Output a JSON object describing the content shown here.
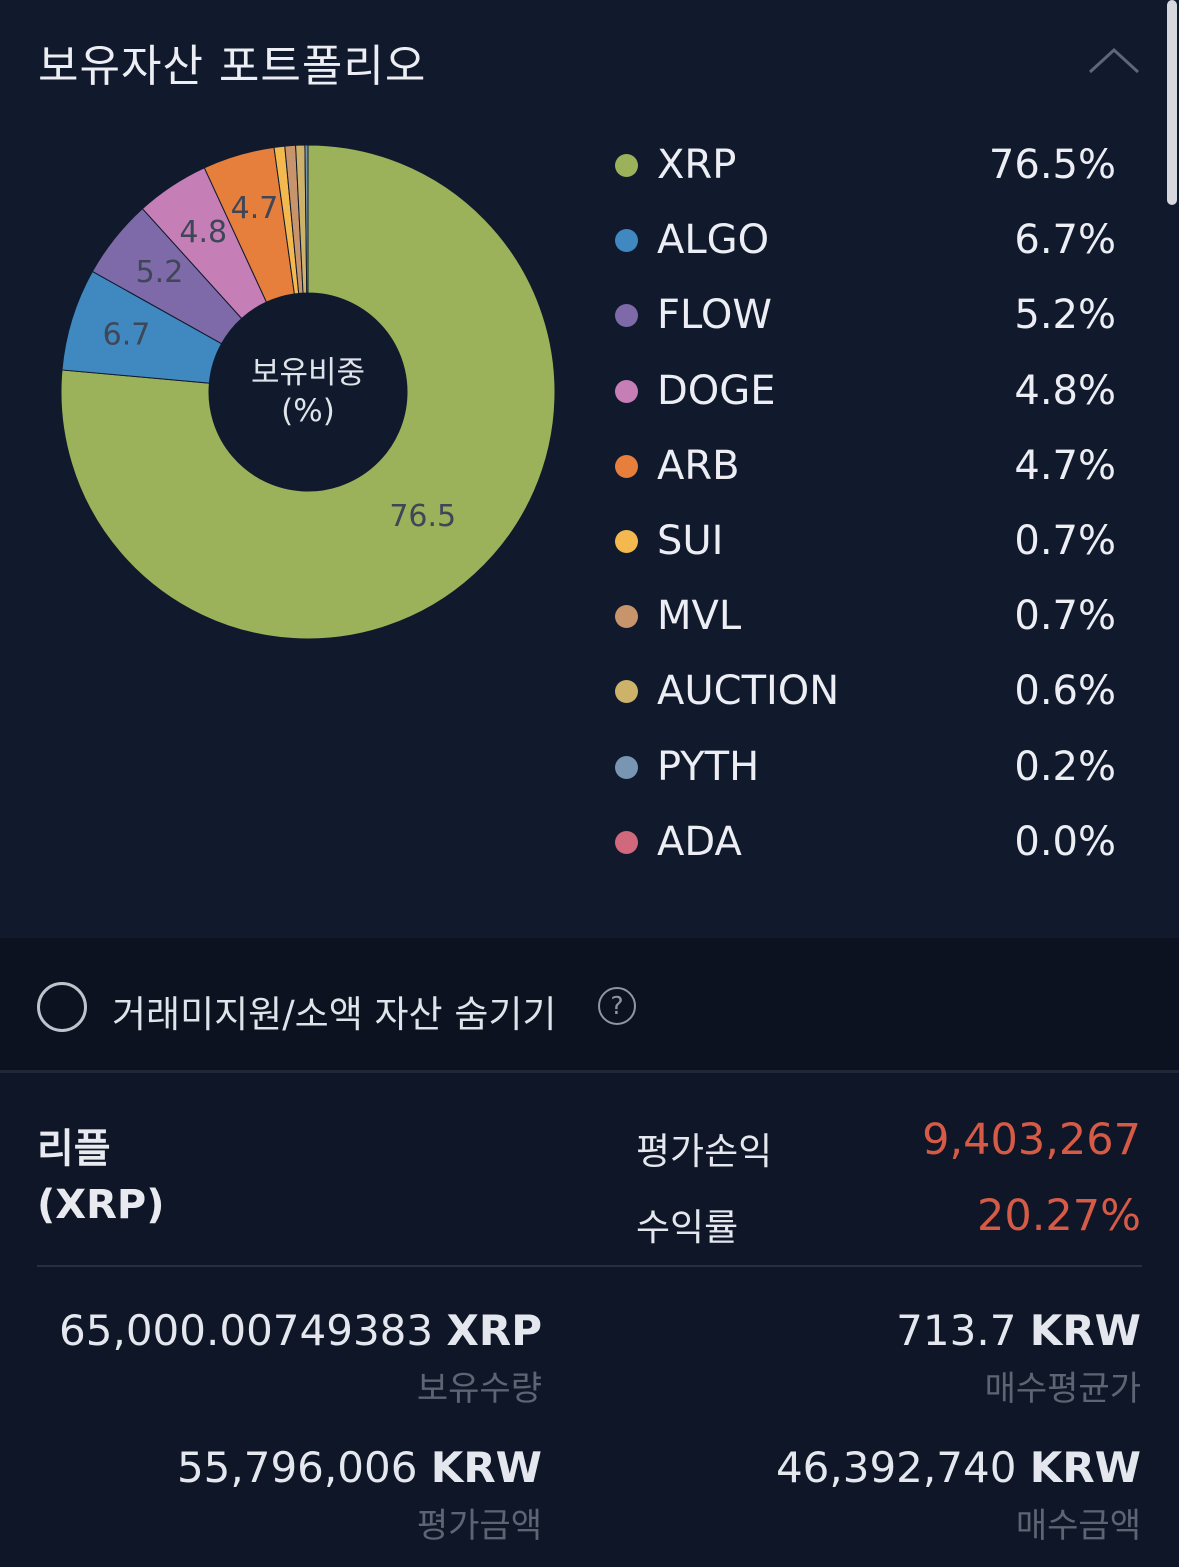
{
  "header": {
    "title": "보유자산 포트폴리오"
  },
  "chart_data": {
    "type": "pie",
    "center_label": [
      "보유비중",
      "(%)"
    ],
    "slices": [
      {
        "name": "XRP",
        "value": 76.5,
        "label": "76.5",
        "legend": "76.5%",
        "color": "#9bb15a"
      },
      {
        "name": "ALGO",
        "value": 6.7,
        "label": "6.7",
        "legend": "6.7%",
        "color": "#3f88c0"
      },
      {
        "name": "FLOW",
        "value": 5.2,
        "label": "5.2",
        "legend": "5.2%",
        "color": "#7e6aa8"
      },
      {
        "name": "DOGE",
        "value": 4.8,
        "label": "4.8",
        "legend": "4.8%",
        "color": "#c57fb6"
      },
      {
        "name": "ARB",
        "value": 4.7,
        "label": "4.7",
        "legend": "4.7%",
        "color": "#e57f3b"
      },
      {
        "name": "SUI",
        "value": 0.7,
        "label": "",
        "legend": "0.7%",
        "color": "#f3b84e"
      },
      {
        "name": "MVL",
        "value": 0.7,
        "label": "",
        "legend": "0.7%",
        "color": "#c8946c"
      },
      {
        "name": "AUCTION",
        "value": 0.6,
        "label": "",
        "legend": "0.6%",
        "color": "#cdb36a"
      },
      {
        "name": "PYTH",
        "value": 0.2,
        "label": "",
        "legend": "0.2%",
        "color": "#7896b1"
      },
      {
        "name": "ADA",
        "value": 0.0,
        "label": "",
        "legend": "0.0%",
        "color": "#d2687c"
      }
    ]
  },
  "filter": {
    "label": "거래미지원/소액 자산 숨기기",
    "help": "?"
  },
  "asset": {
    "name": "리플",
    "ticker": "(XRP)",
    "pl_label": "평가손익",
    "pl_value": "9,403,267",
    "return_label": "수익률",
    "return_value": "20.27%",
    "pl_color": "#d65b46",
    "holding_amount": "65,000.00749383",
    "holding_unit": "XRP",
    "holding_label": "보유수량",
    "avg_price": "713.7",
    "avg_price_unit": "KRW",
    "avg_price_label": "매수평균가",
    "valuation": "55,796,006",
    "valuation_unit": "KRW",
    "valuation_label": "평가금액",
    "purchase": "46,392,740",
    "purchase_unit": "KRW",
    "purchase_label": "매수금액"
  }
}
